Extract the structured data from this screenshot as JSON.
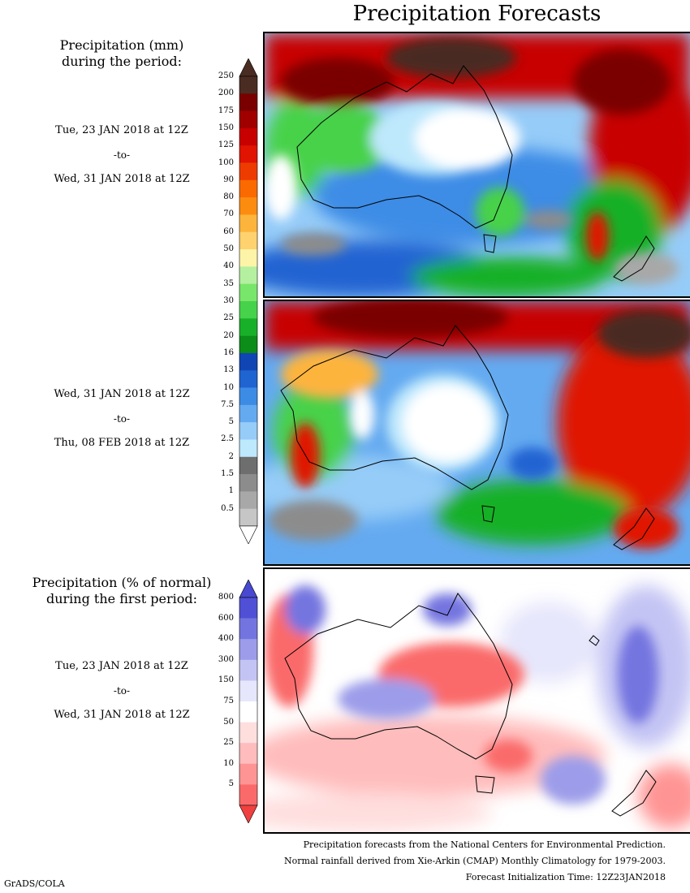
{
  "title": "Precipitation Forecasts",
  "section1": {
    "heading_line1": "Precipitation (mm)",
    "heading_line2": "during the period:",
    "period1": {
      "start": "Tue, 23 JAN 2018 at 12Z",
      "to": "-to-",
      "end": "Wed, 31 JAN 2018 at 12Z"
    },
    "period2": {
      "start": "Wed, 31 JAN 2018 at 12Z",
      "to": "-to-",
      "end": "Thu, 08 FEB 2018 at 12Z"
    }
  },
  "section2": {
    "heading_line1": "Precipitation (% of normal)",
    "heading_line2": "during the first period:",
    "period": {
      "start": "Tue, 23 JAN 2018 at 12Z",
      "to": "-to-",
      "end": "Wed, 31 JAN 2018 at 12Z"
    }
  },
  "mm_scale": {
    "labels": [
      "250",
      "200",
      "175",
      "150",
      "125",
      "100",
      "90",
      "80",
      "70",
      "60",
      "50",
      "40",
      "35",
      "30",
      "25",
      "20",
      "16",
      "13",
      "10",
      "7.5",
      "5",
      "2.5",
      "2",
      "1.5",
      "1",
      "0.5"
    ],
    "colors": [
      "#4a2c22",
      "#7a0000",
      "#a00000",
      "#c80000",
      "#e01400",
      "#ee3c00",
      "#fa6a00",
      "#fc8c10",
      "#fdb43c",
      "#fed26e",
      "#fef4a8",
      "#b4f0a0",
      "#78e66a",
      "#46d24a",
      "#18b028",
      "#0c8c18",
      "#1046b4",
      "#2064d2",
      "#3c8ce6",
      "#64aaf0",
      "#96ccf8",
      "#bee8fc",
      "#6e6e6e",
      "#8c8c8c",
      "#a8a8a8",
      "#c6c6c6"
    ],
    "top_color": "#4a2c22",
    "bottom_color": "#ffffff"
  },
  "pct_scale": {
    "labels": [
      "800",
      "600",
      "400",
      "300",
      "150",
      "75",
      "50",
      "25",
      "10",
      "5"
    ],
    "colors": [
      "#5050d6",
      "#7474e0",
      "#9c9cea",
      "#c4c4f4",
      "#e6e6fc",
      "#ffffff",
      "#ffdede",
      "#ffbcbc",
      "#ff9494",
      "#fa6a6a"
    ],
    "top_color": "#4848d0",
    "bottom_color": "#f04040"
  },
  "footer": {
    "line1": "Precipitation forecasts from the National Centers for Environmental Prediction.",
    "line2": "Normal rainfall derived from Xie-Arkin (CMAP) Monthly Climatology for 1979-2003.",
    "line3": "Forecast Initialization Time: 12Z23JAN2018"
  },
  "credit": "GrADS/COLA"
}
